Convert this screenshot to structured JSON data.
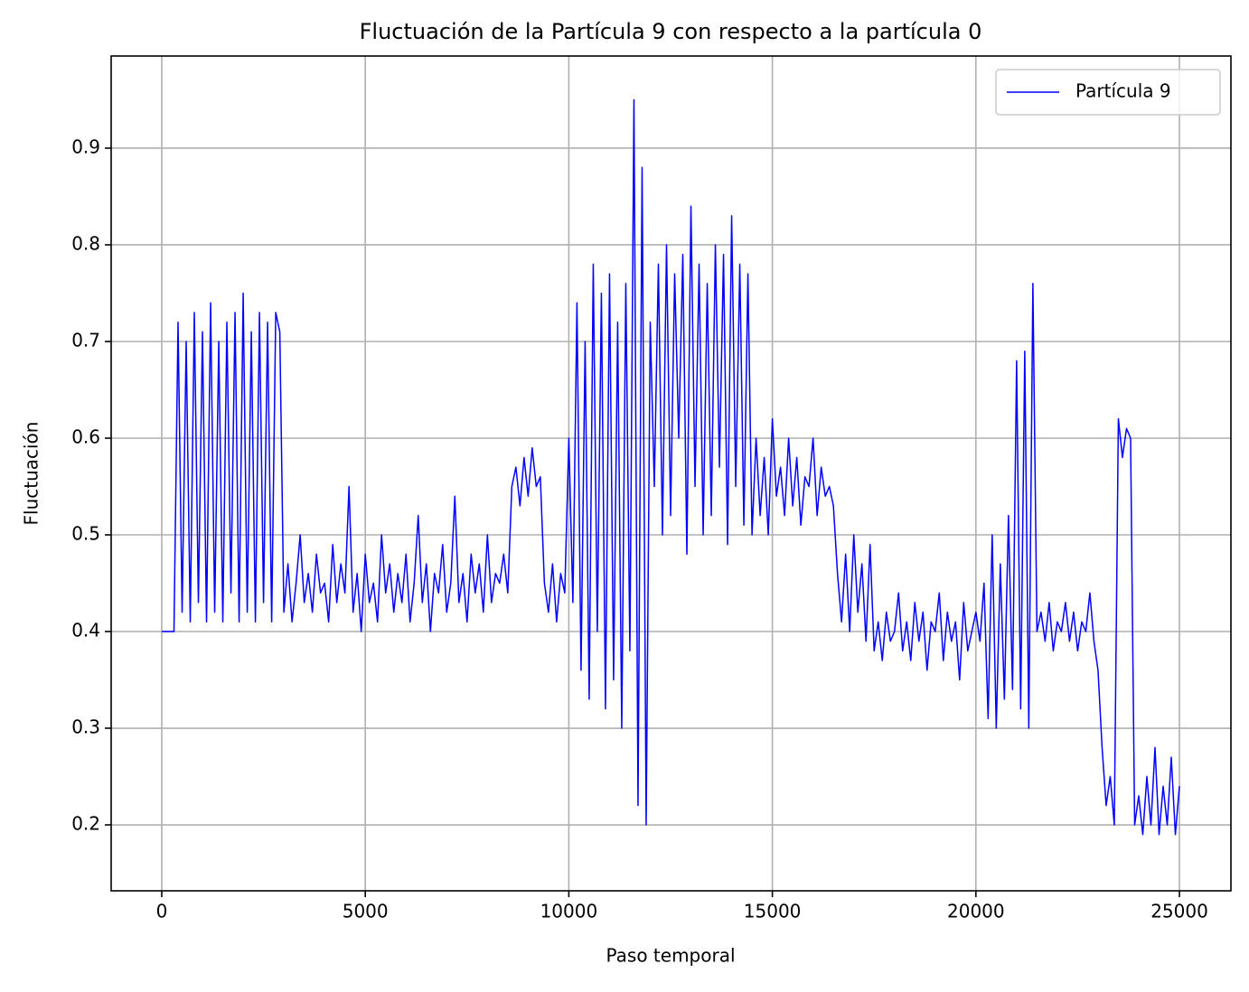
{
  "chart_data": {
    "type": "line",
    "title": "Fluctuación de la Partícula 9 con respecto a la partícula 0",
    "x_label": "Paso temporal",
    "y_label": "Fluctuación",
    "xlim": [
      -1243,
      26265
    ],
    "ylim": [
      0.1318,
      0.9953
    ],
    "xticks": [
      0,
      5000,
      10000,
      15000,
      20000,
      25000
    ],
    "yticks": [
      0.2,
      0.3,
      0.4,
      0.5,
      0.6,
      0.7,
      0.8,
      0.9
    ],
    "grid": true,
    "legend": "upper right",
    "x": [
      0,
      100,
      200,
      300,
      400,
      500,
      600,
      700,
      800,
      900,
      1000,
      1100,
      1200,
      1300,
      1400,
      1500,
      1600,
      1700,
      1800,
      1900,
      2000,
      2100,
      2200,
      2300,
      2400,
      2500,
      2600,
      2700,
      2800,
      2900,
      3000,
      3100,
      3200,
      3300,
      3400,
      3500,
      3600,
      3700,
      3800,
      3900,
      4000,
      4100,
      4200,
      4300,
      4400,
      4500,
      4600,
      4700,
      4800,
      4900,
      5000,
      5100,
      5200,
      5300,
      5400,
      5500,
      5600,
      5700,
      5800,
      5900,
      6000,
      6100,
      6200,
      6300,
      6400,
      6500,
      6600,
      6700,
      6800,
      6900,
      7000,
      7100,
      7200,
      7300,
      7400,
      7500,
      7600,
      7700,
      7800,
      7900,
      8000,
      8100,
      8200,
      8300,
      8400,
      8500,
      8600,
      8700,
      8800,
      8900,
      9000,
      9100,
      9200,
      9300,
      9400,
      9500,
      9600,
      9700,
      9800,
      9900,
      10000,
      10100,
      10200,
      10300,
      10400,
      10500,
      10600,
      10700,
      10800,
      10900,
      11000,
      11100,
      11200,
      11300,
      11400,
      11500,
      11600,
      11700,
      11800,
      11900,
      12000,
      12100,
      12200,
      12300,
      12400,
      12500,
      12600,
      12700,
      12800,
      12900,
      13000,
      13100,
      13200,
      13300,
      13400,
      13500,
      13600,
      13700,
      13800,
      13900,
      14000,
      14100,
      14200,
      14300,
      14400,
      14500,
      14600,
      14700,
      14800,
      14900,
      15000,
      15100,
      15200,
      15300,
      15400,
      15500,
      15600,
      15700,
      15800,
      15900,
      16000,
      16100,
      16200,
      16300,
      16400,
      16500,
      16600,
      16700,
      16800,
      16900,
      17000,
      17100,
      17200,
      17300,
      17400,
      17500,
      17600,
      17700,
      17800,
      17900,
      18000,
      18100,
      18200,
      18300,
      18400,
      18500,
      18600,
      18700,
      18800,
      18900,
      19000,
      19100,
      19200,
      19300,
      19400,
      19500,
      19600,
      19700,
      19800,
      19900,
      20000,
      20100,
      20200,
      20300,
      20400,
      20500,
      20600,
      20700,
      20800,
      20900,
      21000,
      21100,
      21200,
      21300,
      21400,
      21500,
      21600,
      21700,
      21800,
      21900,
      22000,
      22100,
      22200,
      22300,
      22400,
      22500,
      22600,
      22700,
      22800,
      22900,
      23000,
      23100,
      23200,
      23300,
      23400,
      23500,
      23600,
      23700,
      23800,
      23900,
      24000,
      24100,
      24200,
      24300,
      24400,
      24500,
      24600,
      24700,
      24800,
      24900,
      25000
    ],
    "series": [
      {
        "name": "Partícula 9",
        "color": "#0000ff",
        "values": [
          0.4,
          0.4,
          0.4,
          0.4,
          0.72,
          0.42,
          0.7,
          0.41,
          0.73,
          0.43,
          0.71,
          0.41,
          0.74,
          0.42,
          0.7,
          0.41,
          0.72,
          0.44,
          0.73,
          0.41,
          0.75,
          0.42,
          0.71,
          0.41,
          0.73,
          0.43,
          0.72,
          0.41,
          0.73,
          0.71,
          0.42,
          0.47,
          0.41,
          0.45,
          0.5,
          0.43,
          0.46,
          0.42,
          0.48,
          0.44,
          0.45,
          0.41,
          0.49,
          0.43,
          0.47,
          0.44,
          0.55,
          0.42,
          0.46,
          0.4,
          0.48,
          0.43,
          0.45,
          0.41,
          0.5,
          0.44,
          0.47,
          0.42,
          0.46,
          0.43,
          0.48,
          0.41,
          0.45,
          0.52,
          0.43,
          0.47,
          0.4,
          0.46,
          0.44,
          0.49,
          0.42,
          0.45,
          0.54,
          0.43,
          0.46,
          0.41,
          0.48,
          0.44,
          0.47,
          0.42,
          0.5,
          0.43,
          0.46,
          0.45,
          0.48,
          0.44,
          0.55,
          0.57,
          0.53,
          0.58,
          0.54,
          0.59,
          0.55,
          0.56,
          0.45,
          0.42,
          0.47,
          0.41,
          0.46,
          0.44,
          0.6,
          0.43,
          0.74,
          0.36,
          0.7,
          0.33,
          0.78,
          0.4,
          0.75,
          0.32,
          0.77,
          0.35,
          0.72,
          0.3,
          0.76,
          0.38,
          0.95,
          0.22,
          0.88,
          0.2,
          0.72,
          0.55,
          0.78,
          0.5,
          0.8,
          0.52,
          0.77,
          0.6,
          0.79,
          0.48,
          0.84,
          0.55,
          0.78,
          0.5,
          0.76,
          0.52,
          0.8,
          0.57,
          0.79,
          0.49,
          0.83,
          0.55,
          0.78,
          0.51,
          0.77,
          0.5,
          0.6,
          0.52,
          0.58,
          0.5,
          0.62,
          0.54,
          0.57,
          0.52,
          0.6,
          0.53,
          0.58,
          0.51,
          0.56,
          0.55,
          0.6,
          0.52,
          0.57,
          0.54,
          0.55,
          0.53,
          0.46,
          0.41,
          0.48,
          0.4,
          0.5,
          0.42,
          0.47,
          0.39,
          0.49,
          0.38,
          0.41,
          0.37,
          0.42,
          0.39,
          0.4,
          0.44,
          0.38,
          0.41,
          0.37,
          0.43,
          0.39,
          0.42,
          0.36,
          0.41,
          0.4,
          0.44,
          0.37,
          0.42,
          0.39,
          0.41,
          0.35,
          0.43,
          0.38,
          0.4,
          0.42,
          0.39,
          0.45,
          0.31,
          0.5,
          0.3,
          0.47,
          0.33,
          0.52,
          0.34,
          0.68,
          0.32,
          0.69,
          0.3,
          0.76,
          0.4,
          0.42,
          0.39,
          0.43,
          0.38,
          0.41,
          0.4,
          0.43,
          0.39,
          0.42,
          0.38,
          0.41,
          0.4,
          0.44,
          0.39,
          0.36,
          0.28,
          0.22,
          0.25,
          0.2,
          0.62,
          0.58,
          0.61,
          0.6,
          0.2,
          0.23,
          0.19,
          0.25,
          0.2,
          0.28,
          0.19,
          0.24,
          0.2,
          0.27,
          0.19,
          0.24
        ]
      }
    ]
  }
}
